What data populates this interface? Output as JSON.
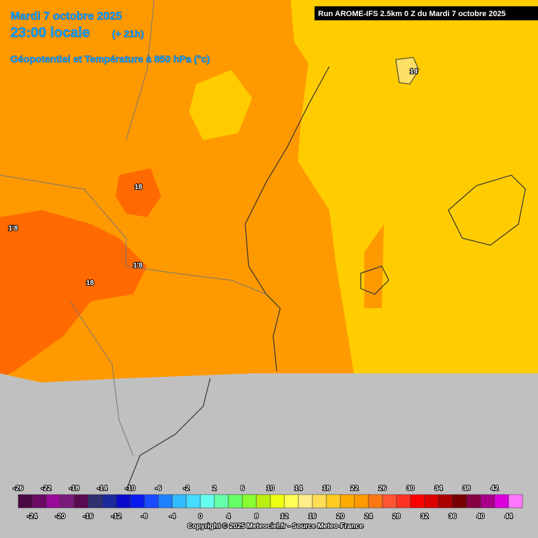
{
  "header": {
    "date": "Mardi 7 octobre 2025",
    "time": "23:00 locale",
    "lead": "(+ 21h)",
    "field": "Géopotentiel et Température à 850 hPa (°c)",
    "run": "Run AROME-IFS 2.5km 0 Z du Mardi 7 octobre 2025"
  },
  "contour_labels": [
    "18",
    "1'8",
    "1'8",
    "18",
    "14"
  ],
  "colorbar": {
    "labels_top": [
      -26,
      -22,
      -18,
      -14,
      -10,
      -6,
      -2,
      2,
      6,
      10,
      14,
      18,
      22,
      26,
      30,
      34,
      38,
      42
    ],
    "labels_bottom": [
      -24,
      -20,
      -16,
      -12,
      -8,
      -4,
      0,
      4,
      8,
      12,
      16,
      20,
      24,
      28,
      32,
      36,
      40,
      44
    ],
    "colors": [
      "#4a0a46",
      "#6a0a62",
      "#9a0a9a",
      "#7a1a7a",
      "#5a0a50",
      "#303070",
      "#1a2a9a",
      "#0a0acd",
      "#0a1aee",
      "#1a4aff",
      "#1e80ff",
      "#33bbff",
      "#44ddff",
      "#66ffee",
      "#66ffaa",
      "#66ff66",
      "#88ff33",
      "#bbee11",
      "#eeff11",
      "#ffff55",
      "#ffee88",
      "#ffdd55",
      "#ffcc22",
      "#ffaa00",
      "#ff9900",
      "#ff7711",
      "#ff5533",
      "#ff3322",
      "#ff0000",
      "#dd0000",
      "#aa0000",
      "#770000",
      "#880044",
      "#aa0088",
      "#dd00dd",
      "#ff77ff"
    ]
  },
  "copyright": "Copyright © 2025 Meteociel.fr - Source Meteo-France"
}
